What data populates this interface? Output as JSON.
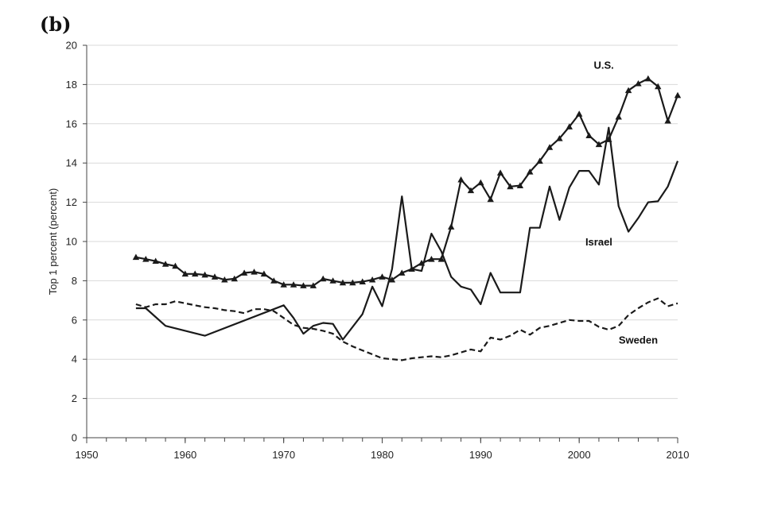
{
  "chart_data": {
    "type": "line",
    "panel_label": "(b)",
    "title": "",
    "xlabel": "",
    "ylabel": "Top 1 percent (percent)",
    "xlim": [
      1950,
      2010
    ],
    "ylim": [
      0,
      20
    ],
    "x_ticks": [
      1950,
      1960,
      1970,
      1980,
      1990,
      2000,
      2010
    ],
    "y_ticks": [
      0,
      2,
      4,
      6,
      8,
      10,
      12,
      14,
      16,
      18,
      20
    ],
    "grid": true,
    "series": [
      {
        "name": "U.S.",
        "style": "solid-triangles",
        "color": "#1a1a1a",
        "x": [
          1955,
          1956,
          1957,
          1958,
          1959,
          1960,
          1961,
          1962,
          1963,
          1964,
          1965,
          1966,
          1967,
          1968,
          1969,
          1970,
          1971,
          1972,
          1973,
          1974,
          1975,
          1976,
          1977,
          1978,
          1979,
          1980,
          1981,
          1982,
          1983,
          1984,
          1985,
          1986,
          1987,
          1988,
          1989,
          1990,
          1991,
          1992,
          1993,
          1994,
          1995,
          1996,
          1997,
          1998,
          1999,
          2000,
          2001,
          2002,
          2003,
          2004,
          2005,
          2006,
          2007,
          2008,
          2009,
          2010
        ],
        "values": [
          9.2,
          9.1,
          9.0,
          8.85,
          8.75,
          8.35,
          8.35,
          8.3,
          8.2,
          8.05,
          8.1,
          8.4,
          8.45,
          8.35,
          8.0,
          7.8,
          7.8,
          7.75,
          7.75,
          8.1,
          8.0,
          7.9,
          7.9,
          7.95,
          8.05,
          8.2,
          8.05,
          8.4,
          8.6,
          8.9,
          9.1,
          9.1,
          10.75,
          13.15,
          12.6,
          13.0,
          12.15,
          13.5,
          12.8,
          12.85,
          13.55,
          14.1,
          14.8,
          15.25,
          15.85,
          16.5,
          15.4,
          14.95,
          15.2,
          16.35,
          17.7,
          18.05,
          18.3,
          17.9,
          16.15,
          17.45
        ]
      },
      {
        "name": "Israel",
        "style": "solid",
        "color": "#1a1a1a",
        "x": [
          1955,
          1956,
          1958,
          1962,
          1970,
          1971,
          1972,
          1973,
          1974,
          1975,
          1976,
          1978,
          1979,
          1980,
          1981,
          1982,
          1983,
          1984,
          1985,
          1986,
          1987,
          1988,
          1989,
          1990,
          1991,
          1992,
          1993,
          1994,
          1995,
          1996,
          1997,
          1998,
          1999,
          2000,
          2001,
          2002,
          2003,
          2004,
          2005,
          2006,
          2007,
          2008,
          2009,
          2010
        ],
        "values": [
          6.6,
          6.6,
          5.7,
          5.2,
          6.75,
          6.1,
          5.3,
          5.7,
          5.85,
          5.8,
          5.0,
          6.3,
          7.7,
          6.7,
          8.6,
          12.3,
          8.6,
          8.5,
          10.4,
          9.5,
          8.2,
          7.7,
          7.55,
          6.8,
          8.4,
          7.4,
          7.4,
          7.4,
          10.7,
          10.7,
          12.8,
          11.1,
          12.75,
          13.6,
          13.6,
          12.9,
          15.8,
          11.8,
          10.5,
          11.2,
          12.0,
          12.05,
          12.8,
          14.1
        ]
      },
      {
        "name": "Sweden",
        "style": "dashed",
        "color": "#1a1a1a",
        "x": [
          1955,
          1956,
          1957,
          1958,
          1959,
          1960,
          1961,
          1962,
          1963,
          1964,
          1965,
          1966,
          1967,
          1968,
          1969,
          1970,
          1971,
          1972,
          1973,
          1974,
          1975,
          1976,
          1977,
          1978,
          1979,
          1980,
          1981,
          1982,
          1983,
          1984,
          1985,
          1986,
          1987,
          1988,
          1989,
          1990,
          1991,
          1992,
          1993,
          1994,
          1995,
          1996,
          1997,
          1998,
          1999,
          2000,
          2001,
          2002,
          2003,
          2004,
          2005,
          2006,
          2007,
          2008,
          2009,
          2010
        ],
        "values": [
          6.8,
          6.65,
          6.8,
          6.8,
          6.95,
          6.85,
          6.75,
          6.65,
          6.6,
          6.5,
          6.45,
          6.35,
          6.55,
          6.55,
          6.45,
          6.1,
          5.75,
          5.6,
          5.55,
          5.45,
          5.3,
          4.9,
          4.65,
          4.45,
          4.25,
          4.05,
          4.0,
          3.95,
          4.05,
          4.1,
          4.15,
          4.1,
          4.2,
          4.35,
          4.5,
          4.4,
          5.1,
          5.0,
          5.2,
          5.5,
          5.25,
          5.6,
          5.7,
          5.85,
          6.0,
          5.95,
          5.95,
          5.65,
          5.5,
          5.7,
          6.25,
          6.6,
          6.9,
          7.1,
          6.7,
          6.85
        ]
      }
    ],
    "annotations": [
      {
        "text": "U.S.",
        "series": "U.S.",
        "x": 2002.5,
        "y": 18.8
      },
      {
        "text": "Israel",
        "series": "Israel",
        "x": 2002,
        "y": 9.8
      },
      {
        "text": "Sweden",
        "series": "Sweden",
        "x": 2006,
        "y": 4.8
      }
    ]
  }
}
